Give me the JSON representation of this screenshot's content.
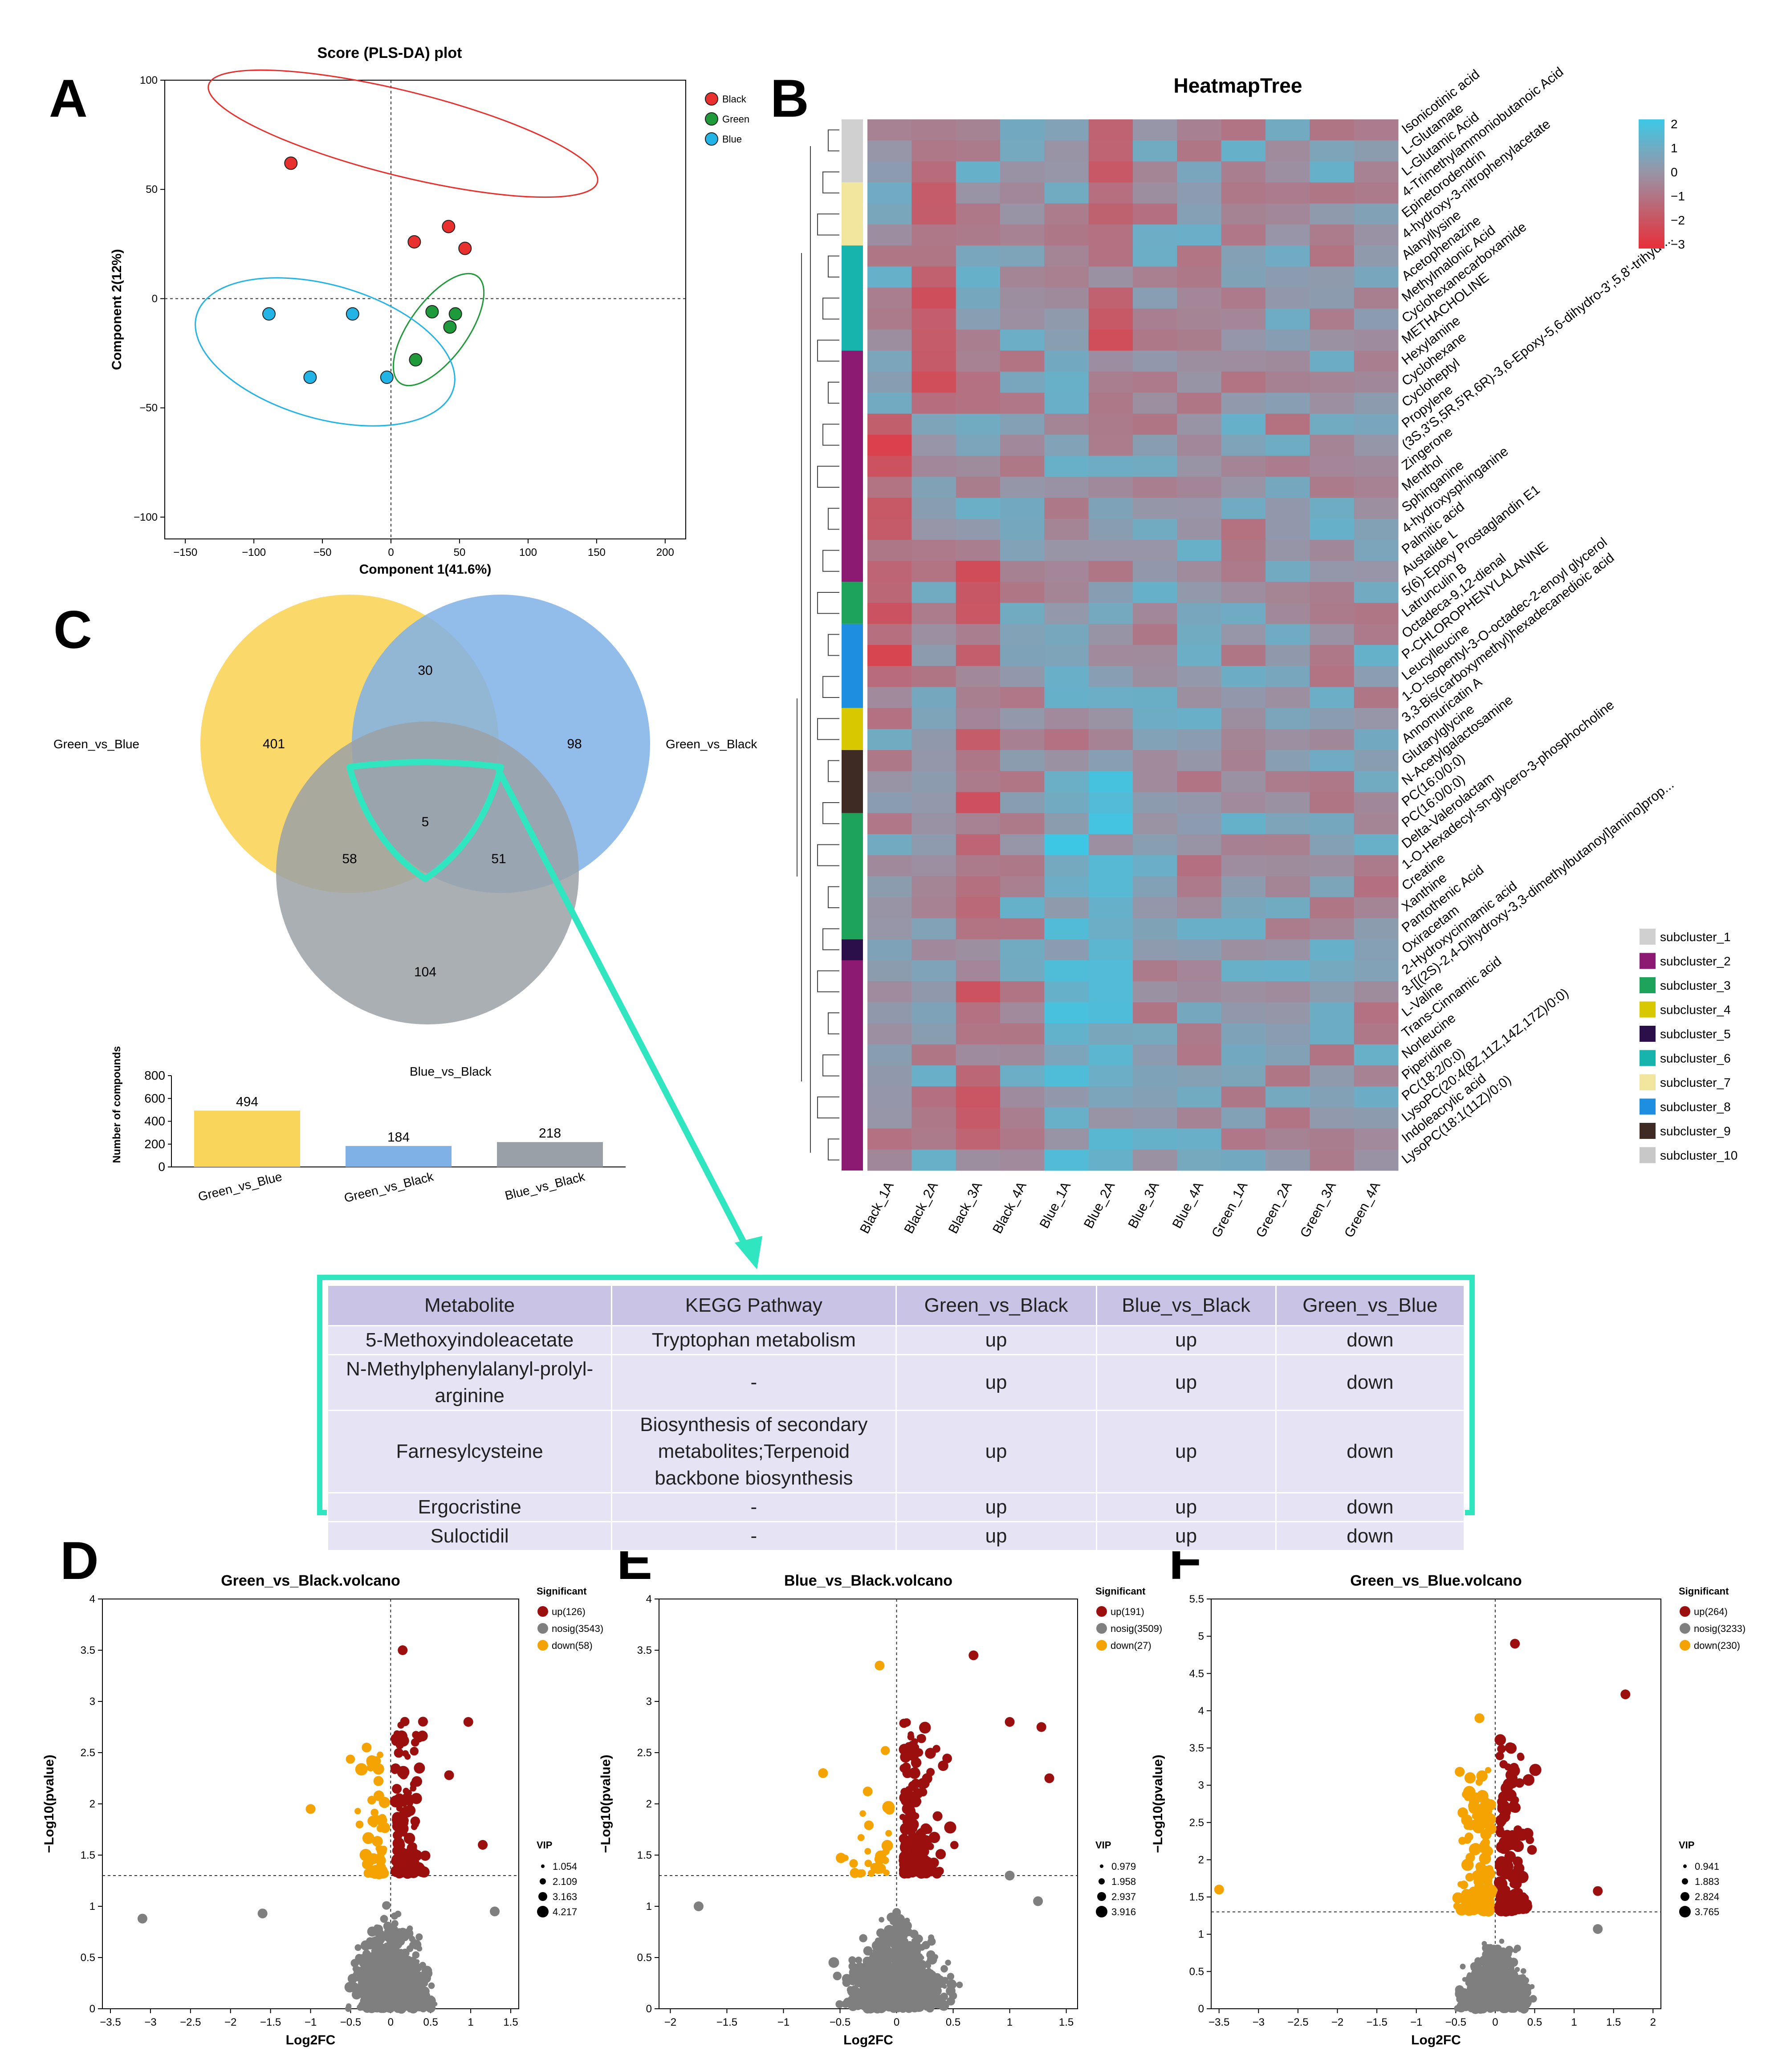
{
  "figure": {
    "panel_letters": [
      "A",
      "B",
      "C",
      "D",
      "E",
      "F"
    ]
  },
  "colors": {
    "black_group": "#e8312f",
    "green_group": "#1e9a3a",
    "blue_group": "#23b4e6",
    "venn_yellow": "#f9d55a",
    "venn_blue": "#7fb0e6",
    "venn_gray": "#9aa1a6",
    "highlight": "#2fe6c1",
    "up": "#9b0f0f",
    "nosig": "#7f7f7f",
    "down": "#f5a300",
    "table_header": "#c9c3e6",
    "table_row": "#e6e3f4"
  },
  "chart_data": [
    {
      "id": "A",
      "type": "scatter",
      "title": "Score (PLS-DA) plot",
      "xlabel": "Component 1(41.6%)",
      "ylabel": "Component 2(12%)",
      "xlim": [
        -165,
        215
      ],
      "ylim": [
        -110,
        100
      ],
      "xticks": [
        -150,
        -100,
        -50,
        0,
        50,
        100,
        150,
        200
      ],
      "yticks": [
        -100,
        -50,
        0,
        50,
        100
      ],
      "xtick_labels": [
        "−150",
        "−100",
        "−50",
        "0",
        "50",
        "100",
        "150",
        "200"
      ],
      "ytick_labels": [
        "−100",
        "−50",
        "0",
        "50",
        "100"
      ],
      "series": [
        {
          "name": "Black",
          "color": "#e8312f",
          "points": [
            [
              -73,
              62
            ],
            [
              17,
              26
            ],
            [
              42,
              33
            ],
            [
              54,
              23
            ]
          ]
        },
        {
          "name": "Green",
          "color": "#1e9a3a",
          "points": [
            [
              30,
              -6
            ],
            [
              47,
              -7
            ],
            [
              43,
              -13
            ],
            [
              18,
              -28
            ]
          ]
        },
        {
          "name": "Blue",
          "color": "#23b4e6",
          "points": [
            [
              -89,
              -7
            ],
            [
              -28,
              -7
            ],
            [
              -59,
              -36
            ],
            [
              -3,
              -36
            ]
          ]
        }
      ],
      "legend": [
        "Black",
        "Green",
        "Blue"
      ]
    },
    {
      "id": "B",
      "type": "heatmap",
      "title": "HeatmapTree",
      "columns": [
        "Black_1A",
        "Black_2A",
        "Black_3A",
        "Black_4A",
        "Blue_1A",
        "Blue_2A",
        "Blue_3A",
        "Blue_4A",
        "Green_1A",
        "Green_2A",
        "Green_3A",
        "Green_4A"
      ],
      "row_labels": [
        "Isonicotinic acid",
        "L-Glutamate",
        "L-Glutamic Acid",
        "4-Trimethylammoniobutanoic Acid",
        "Epinetorodendrin",
        "4-hydroxy-3-nitrophenylacetate",
        "Alanyllysine",
        "Acetophenazine",
        "Methylmalonic Acid",
        "Cyclohexanecarboxamide",
        "METHACHOLINE",
        "Hexylamine",
        "Cyclohexane",
        "Cycloheptyl",
        "Propylene",
        "(3S,3'S,5R,5'R,6R)-3,6-Epoxy-5,6-dihydro-3',5,8'-trihydr...",
        "Zingerone",
        "Menthol",
        "Sphinganine",
        "4-hydroxysphinganine",
        "Palmitic acid",
        "Austalide L",
        "5(6)-Epoxy Prostaglandin E1",
        "Latrunculin B",
        "Octadeca-9,12-dienal",
        "P-CHLOROPHENYLALANINE",
        "Leucylleucine",
        "1-O-Isopentyl-3-O-octadec-2-enoyl glycerol",
        "3,3-Bis(carboxymethyl)hexadecanedioic acid",
        "Annomuricatin A",
        "Glutarylglycine",
        "N-Acetylgalactosamine",
        "PC(16:0/0:0)",
        "PC(16:0/0:0)",
        "Delta-Valerolactam",
        "1-O-Hexadecyl-sn-glycero-3-phosphocholine",
        "Creatine",
        "Xanthine",
        "Pantothenic Acid",
        "Oxiracetam",
        "2-Hydroxycinnamic acid",
        "3-[[(2S)-2,4-Dihydroxy-3,3-dimethylbutanoyl]amino]prop...",
        "L-Valine",
        "Trans-Cinnamic acid",
        "Norleucine",
        "Piperidine",
        "PC(18:2/0:0)",
        "LysoPC(20:4(8Z,11Z,14Z,17Z)/0:0)",
        "Indoleacrylic acid",
        "LysoPC(18:1(11Z)/0:0)"
      ],
      "scale": {
        "min": -3,
        "max": 2,
        "ticks": [
          2,
          1,
          0,
          -1,
          -2,
          -3
        ],
        "tick_labels": [
          "2",
          "1",
          "0",
          "−1",
          "−2",
          "−3"
        ]
      },
      "subclusters": [
        {
          "name": "subcluster_1",
          "color": "#d0d0d0",
          "rows": 3
        },
        {
          "name": "subcluster_2",
          "color": "#8c1a73",
          "rows": 1
        },
        {
          "name": "subcluster_3",
          "color": "#1ea35a",
          "rows": 1
        },
        {
          "name": "subcluster_4",
          "color": "#d8c800",
          "rows": 1
        },
        {
          "name": "subcluster_5",
          "color": "#2a0f4a",
          "rows": 1
        },
        {
          "name": "subcluster_6",
          "color": "#17b3ad",
          "rows": 1
        },
        {
          "name": "subcluster_7",
          "color": "#f2e59e",
          "rows": 1
        },
        {
          "name": "subcluster_8",
          "color": "#1e8fe0",
          "rows": 1
        },
        {
          "name": "subcluster_9",
          "color": "#3d2b24",
          "rows": 1
        },
        {
          "name": "subcluster_10",
          "color": "#c8c8c8",
          "rows": 1
        }
      ],
      "side_bar": [
        {
          "color": "#d0d0d0",
          "rows": 3
        },
        {
          "color": "#f2e59e",
          "rows": 3
        },
        {
          "color": "#17b3ad",
          "rows": 5
        },
        {
          "color": "#8c1a73",
          "rows": 11
        },
        {
          "color": "#1ea35a",
          "rows": 2
        },
        {
          "color": "#1e8fe0",
          "rows": 4
        },
        {
          "color": "#d8c800",
          "rows": 2
        },
        {
          "color": "#3d2b24",
          "rows": 3
        },
        {
          "color": "#1ea35a",
          "rows": 6
        },
        {
          "color": "#2a0f4a",
          "rows": 1
        },
        {
          "color": "#8c1a73",
          "rows": 10
        }
      ]
    },
    {
      "id": "C-venn",
      "type": "venn",
      "sets": [
        "Green_vs_Blue",
        "Green_vs_Black",
        "Blue_vs_Black"
      ],
      "regions": {
        "Green_vs_Blue_only": 401,
        "Green_vs_Black_only": 98,
        "Blue_vs_Black_only": 104,
        "GvB_and_GvBk": 30,
        "GvB_and_BvBk": 58,
        "GvBk_and_BvBk": 51,
        "all_three": 5
      }
    },
    {
      "id": "C-bar",
      "type": "bar",
      "ylabel": "Number of compounds",
      "categories": [
        "Green_vs_Blue",
        "Green_vs_Black",
        "Blue_vs_Black"
      ],
      "values": [
        494,
        184,
        218
      ],
      "colors": [
        "#f9d55a",
        "#7fb0e6",
        "#9aa1a6"
      ],
      "ylim": [
        0,
        800
      ],
      "yticks": [
        0,
        200,
        400,
        600,
        800
      ]
    },
    {
      "id": "D",
      "type": "scatter",
      "subtype": "volcano",
      "title": "Green_vs_Black.volcano",
      "xlabel": "Log2FC",
      "ylabel": "−Log10(pvalue)",
      "xlim": [
        -3.6,
        1.6
      ],
      "ylim": [
        0,
        4
      ],
      "xticks": [
        -3.5,
        -3,
        -2.5,
        -2,
        -1.5,
        -1,
        -0.5,
        0,
        0.5,
        1,
        1.5
      ],
      "xtick_labels": [
        "−3.5",
        "−3",
        "−2.5",
        "−2",
        "−1.5",
        "−1",
        "−0.5",
        "0",
        "0.5",
        "1",
        "1.5"
      ],
      "yticks": [
        0,
        0.5,
        1,
        1.5,
        2,
        2.5,
        3,
        3.5,
        4
      ],
      "threshold": 1.3,
      "legend": {
        "title": "Significant",
        "items": [
          {
            "label": "up(126)",
            "color": "#9b0f0f"
          },
          {
            "label": "nosig(3543)",
            "color": "#7f7f7f"
          },
          {
            "label": "down(58)",
            "color": "#f5a300"
          }
        ]
      },
      "vip": {
        "title": "VIP",
        "values": [
          "1.054",
          "2.109",
          "3.163",
          "4.217"
        ]
      },
      "counts": {
        "up": 126,
        "nosig": 3543,
        "down": 58
      },
      "seed": 11,
      "outliers": [
        [
          -3.1,
          0.88,
          "nosig"
        ],
        [
          -1.6,
          0.93,
          "nosig"
        ],
        [
          1.15,
          1.6,
          "up"
        ],
        [
          0.97,
          2.8,
          "up"
        ],
        [
          0.73,
          2.28,
          "up"
        ],
        [
          0.15,
          3.5,
          "up"
        ],
        [
          -1.0,
          1.95,
          "down"
        ],
        [
          -0.3,
          2.55,
          "down"
        ],
        [
          1.3,
          0.95,
          "nosig"
        ]
      ]
    },
    {
      "id": "E",
      "type": "scatter",
      "subtype": "volcano",
      "title": "Blue_vs_Black.volcano",
      "xlabel": "Log2FC",
      "ylabel": "−Log10(pvalue)",
      "xlim": [
        -2.1,
        1.6
      ],
      "ylim": [
        0,
        4
      ],
      "xticks": [
        -2,
        -1.5,
        -1,
        -0.5,
        0,
        0.5,
        1,
        1.5
      ],
      "xtick_labels": [
        "−2",
        "−1.5",
        "−1",
        "−0.5",
        "0",
        "0.5",
        "1",
        "1.5"
      ],
      "yticks": [
        0,
        0.5,
        1,
        1.5,
        2,
        2.5,
        3,
        3.5,
        4
      ],
      "threshold": 1.3,
      "legend": {
        "title": "Significant",
        "items": [
          {
            "label": "up(191)",
            "color": "#9b0f0f"
          },
          {
            "label": "nosig(3509)",
            "color": "#7f7f7f"
          },
          {
            "label": "down(27)",
            "color": "#f5a300"
          }
        ]
      },
      "vip": {
        "title": "VIP",
        "values": [
          "0.979",
          "1.958",
          "2.937",
          "3.916"
        ]
      },
      "counts": {
        "up": 191,
        "nosig": 3509,
        "down": 27
      },
      "seed": 23,
      "outliers": [
        [
          -1.75,
          1.0,
          "nosig"
        ],
        [
          1.35,
          2.25,
          "up"
        ],
        [
          1.28,
          2.75,
          "up"
        ],
        [
          1.0,
          2.8,
          "up"
        ],
        [
          0.68,
          3.45,
          "up"
        ],
        [
          -0.65,
          2.3,
          "down"
        ],
        [
          -0.15,
          3.35,
          "down"
        ],
        [
          1.25,
          1.05,
          "nosig"
        ],
        [
          1.0,
          1.3,
          "nosig"
        ]
      ]
    },
    {
      "id": "F",
      "type": "scatter",
      "subtype": "volcano",
      "title": "Green_vs_Blue.volcano",
      "xlabel": "Log2FC",
      "ylabel": "−Log10(pvalue)",
      "xlim": [
        -3.6,
        2.1
      ],
      "ylim": [
        0,
        5.5
      ],
      "xticks": [
        -3.5,
        -3,
        -2.5,
        -2,
        -1.5,
        -1,
        -0.5,
        0,
        0.5,
        1,
        1.5,
        2
      ],
      "xtick_labels": [
        "−3.5",
        "−3",
        "−2.5",
        "−2",
        "−1.5",
        "−1",
        "−0.5",
        "0",
        "0.5",
        "1",
        "1.5",
        "2"
      ],
      "yticks": [
        0,
        0.5,
        1,
        1.5,
        2,
        2.5,
        3,
        3.5,
        4,
        4.5,
        5,
        5.5
      ],
      "threshold": 1.3,
      "legend": {
        "title": "Significant",
        "items": [
          {
            "label": "up(264)",
            "color": "#9b0f0f"
          },
          {
            "label": "nosig(3233)",
            "color": "#7f7f7f"
          },
          {
            "label": "down(230)",
            "color": "#f5a300"
          }
        ]
      },
      "vip": {
        "title": "VIP",
        "values": [
          "0.941",
          "1.883",
          "2.824",
          "3.765"
        ]
      },
      "counts": {
        "up": 264,
        "nosig": 3233,
        "down": 230
      },
      "seed": 37,
      "outliers": [
        [
          -3.5,
          1.6,
          "down"
        ],
        [
          1.65,
          4.22,
          "up"
        ],
        [
          0.25,
          4.9,
          "up"
        ],
        [
          1.3,
          1.58,
          "up"
        ],
        [
          -0.2,
          3.9,
          "down"
        ],
        [
          1.3,
          1.07,
          "nosig"
        ]
      ]
    }
  ],
  "table": {
    "headers": [
      "Metabolite",
      "KEGG Pathway",
      "Green_vs_Black",
      "Blue_vs_Black",
      "Green_vs_Blue"
    ],
    "rows": [
      [
        "5-Methoxyindoleacetate",
        "Tryptophan metabolism",
        "up",
        "up",
        "down"
      ],
      [
        "N-Methylphenylalanyl-prolyl-arginine",
        "-",
        "up",
        "up",
        "down"
      ],
      [
        "Farnesylcysteine",
        "Biosynthesis of secondary metabolites;Terpenoid backbone biosynthesis",
        "up",
        "up",
        "down"
      ],
      [
        "Ergocristine",
        "-",
        "up",
        "up",
        "down"
      ],
      [
        "Suloctidil",
        "-",
        "up",
        "up",
        "down"
      ]
    ]
  }
}
